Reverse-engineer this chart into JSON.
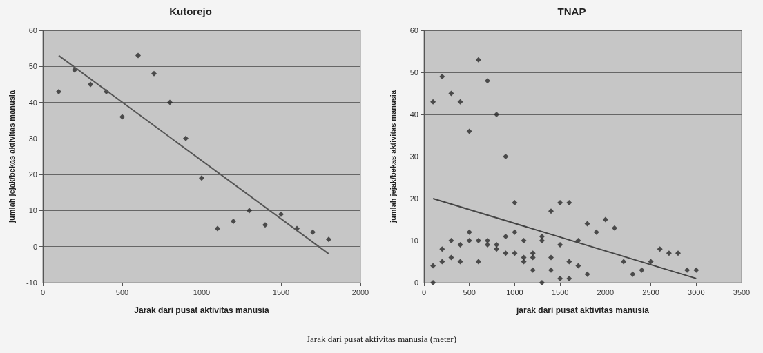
{
  "chart_data": [
    {
      "type": "scatter",
      "title": "Kutorejo",
      "xlabel": "Jarak dari pusat aktivitas manusia",
      "ylabel": "jumlah jejak/bekas aktivitas manusia",
      "xlim": [
        0,
        2000
      ],
      "xticks": [
        0,
        500,
        1000,
        1500,
        2000
      ],
      "ylim": [
        -10,
        60
      ],
      "yticks": [
        -10,
        0,
        10,
        20,
        30,
        40,
        50,
        60
      ],
      "grid": "y",
      "annotations": [
        "Jarak dari pusat aktivitas manusia (meter)"
      ],
      "series": [
        {
          "marker": "diamond",
          "color": "#2b2b2b",
          "x": [
            100,
            200,
            300,
            400,
            500,
            600,
            700,
            800,
            900,
            1000,
            1100,
            1200,
            1300,
            1400,
            1500,
            1600,
            1700,
            1800
          ],
          "values": [
            43,
            49,
            45,
            43,
            36,
            53,
            48,
            40,
            30,
            19,
            5,
            7,
            10,
            6,
            9,
            5,
            4,
            2
          ]
        },
        {
          "type": "line",
          "marker": "none",
          "color": "#555555",
          "x": [
            100,
            1800
          ],
          "values": [
            53,
            -2
          ]
        }
      ]
    },
    {
      "type": "scatter",
      "title": "TNAP",
      "xlabel": "jarak dari pusat aktivitas manusia",
      "ylabel": "jumlah jejak/bekas aktivitas manusia",
      "xlim": [
        0,
        3500
      ],
      "xticks": [
        0,
        500,
        1000,
        1500,
        2000,
        2500,
        3000,
        3500
      ],
      "ylim": [
        0,
        60
      ],
      "yticks": [
        0,
        10,
        20,
        30,
        40,
        50,
        60
      ],
      "grid": "y",
      "series": [
        {
          "marker": "diamond",
          "color": "#2b2b2b",
          "x": [
            100,
            100,
            100,
            200,
            200,
            200,
            300,
            300,
            300,
            400,
            400,
            400,
            500,
            500,
            500,
            600,
            600,
            600,
            700,
            700,
            700,
            800,
            800,
            800,
            900,
            900,
            900,
            1000,
            1000,
            1000,
            1100,
            1100,
            1100,
            1200,
            1200,
            1200,
            1300,
            1300,
            1300,
            1400,
            1400,
            1400,
            1500,
            1500,
            1500,
            1600,
            1600,
            1600,
            1700,
            1700,
            1800,
            1800,
            1900,
            2000,
            2100,
            2200,
            2300,
            2400,
            2500,
            2600,
            2700,
            2800,
            2900,
            3000
          ],
          "values": [
            43,
            4,
            0,
            49,
            8,
            5,
            45,
            10,
            6,
            43,
            9,
            5,
            36,
            12,
            10,
            53,
            10,
            5,
            48,
            10,
            9,
            40,
            9,
            8,
            30,
            11,
            7,
            19,
            12,
            7,
            10,
            6,
            5,
            7,
            6,
            3,
            11,
            10,
            0,
            17,
            6,
            3,
            19,
            9,
            1,
            19,
            5,
            1,
            10,
            4,
            14,
            2,
            12,
            15,
            13,
            5,
            2,
            3,
            5,
            8,
            7,
            7,
            3,
            3
          ]
        },
        {
          "type": "line",
          "marker": "none",
          "color": "#444444",
          "x": [
            100,
            3000
          ],
          "values": [
            20,
            1
          ]
        }
      ]
    }
  ]
}
